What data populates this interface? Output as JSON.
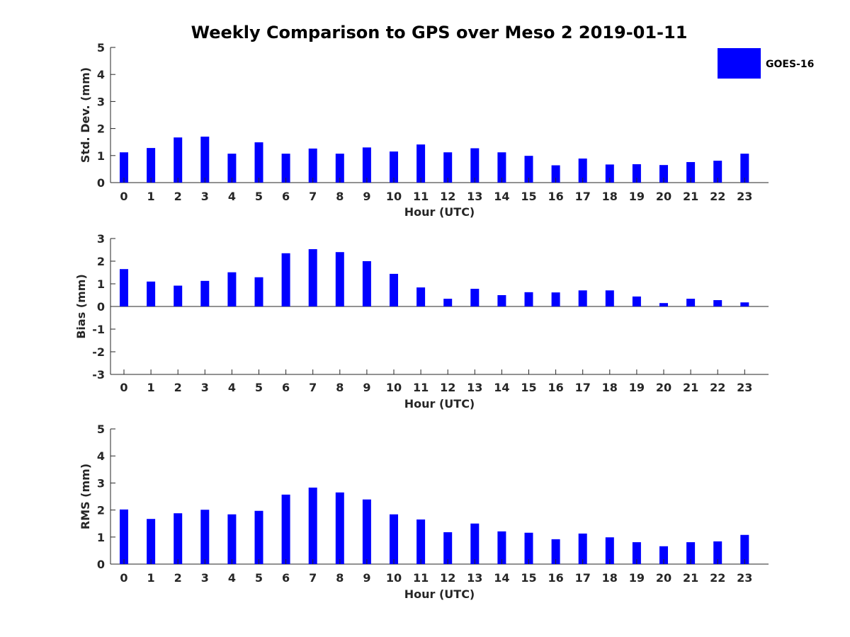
{
  "figure": {
    "title": "Weekly Comparison to GPS over Meso 2 2019-01-11",
    "legend": {
      "label": "GOES-16",
      "color": "#0000ff",
      "placement": "top-right"
    }
  },
  "chart_data": [
    {
      "type": "bar",
      "series": [
        {
          "name": "GOES-16",
          "color": "#0000ff",
          "values": [
            1.12,
            1.28,
            1.67,
            1.7,
            1.07,
            1.49,
            1.07,
            1.26,
            1.07,
            1.3,
            1.15,
            1.41,
            1.12,
            1.27,
            1.12,
            0.99,
            0.64,
            0.89,
            0.67,
            0.68,
            0.65,
            0.76,
            0.81,
            1.07
          ]
        }
      ],
      "categories": [
        "0",
        "1",
        "2",
        "3",
        "4",
        "5",
        "6",
        "7",
        "8",
        "9",
        "10",
        "11",
        "12",
        "13",
        "14",
        "15",
        "16",
        "17",
        "18",
        "19",
        "20",
        "21",
        "22",
        "23"
      ],
      "xlabel": "Hour (UTC)",
      "ylabel": "Std. Dev. (mm)",
      "ylim": [
        0,
        5
      ],
      "yticks": [
        "0",
        "1",
        "2",
        "3",
        "4",
        "5"
      ],
      "grid": false
    },
    {
      "type": "bar",
      "series": [
        {
          "name": "GOES-16",
          "color": "#0000ff",
          "values": [
            1.65,
            1.1,
            0.92,
            1.13,
            1.51,
            1.29,
            2.35,
            2.53,
            2.4,
            2.0,
            1.44,
            0.84,
            0.34,
            0.78,
            0.5,
            0.63,
            0.62,
            0.71,
            0.71,
            0.44,
            0.15,
            0.34,
            0.28,
            0.18
          ]
        }
      ],
      "categories": [
        "0",
        "1",
        "2",
        "3",
        "4",
        "5",
        "6",
        "7",
        "8",
        "9",
        "10",
        "11",
        "12",
        "13",
        "14",
        "15",
        "16",
        "17",
        "18",
        "19",
        "20",
        "21",
        "22",
        "23"
      ],
      "xlabel": "Hour (UTC)",
      "ylabel": "Bias (mm)",
      "ylim": [
        -3,
        3
      ],
      "yticks": [
        "-3",
        "-2",
        "-1",
        "0",
        "1",
        "2",
        "3"
      ],
      "grid": false
    },
    {
      "type": "bar",
      "series": [
        {
          "name": "GOES-16",
          "color": "#0000ff",
          "values": [
            2.02,
            1.67,
            1.88,
            2.01,
            1.84,
            1.97,
            2.57,
            2.83,
            2.65,
            2.39,
            1.84,
            1.65,
            1.18,
            1.5,
            1.21,
            1.16,
            0.92,
            1.13,
            0.99,
            0.81,
            0.66,
            0.81,
            0.84,
            1.08
          ]
        }
      ],
      "categories": [
        "0",
        "1",
        "2",
        "3",
        "4",
        "5",
        "6",
        "7",
        "8",
        "9",
        "10",
        "11",
        "12",
        "13",
        "14",
        "15",
        "16",
        "17",
        "18",
        "19",
        "20",
        "21",
        "22",
        "23"
      ],
      "xlabel": "Hour (UTC)",
      "ylabel": "RMS (mm)",
      "ylim": [
        0,
        5
      ],
      "yticks": [
        "0",
        "1",
        "2",
        "3",
        "4",
        "5"
      ],
      "grid": false
    }
  ]
}
